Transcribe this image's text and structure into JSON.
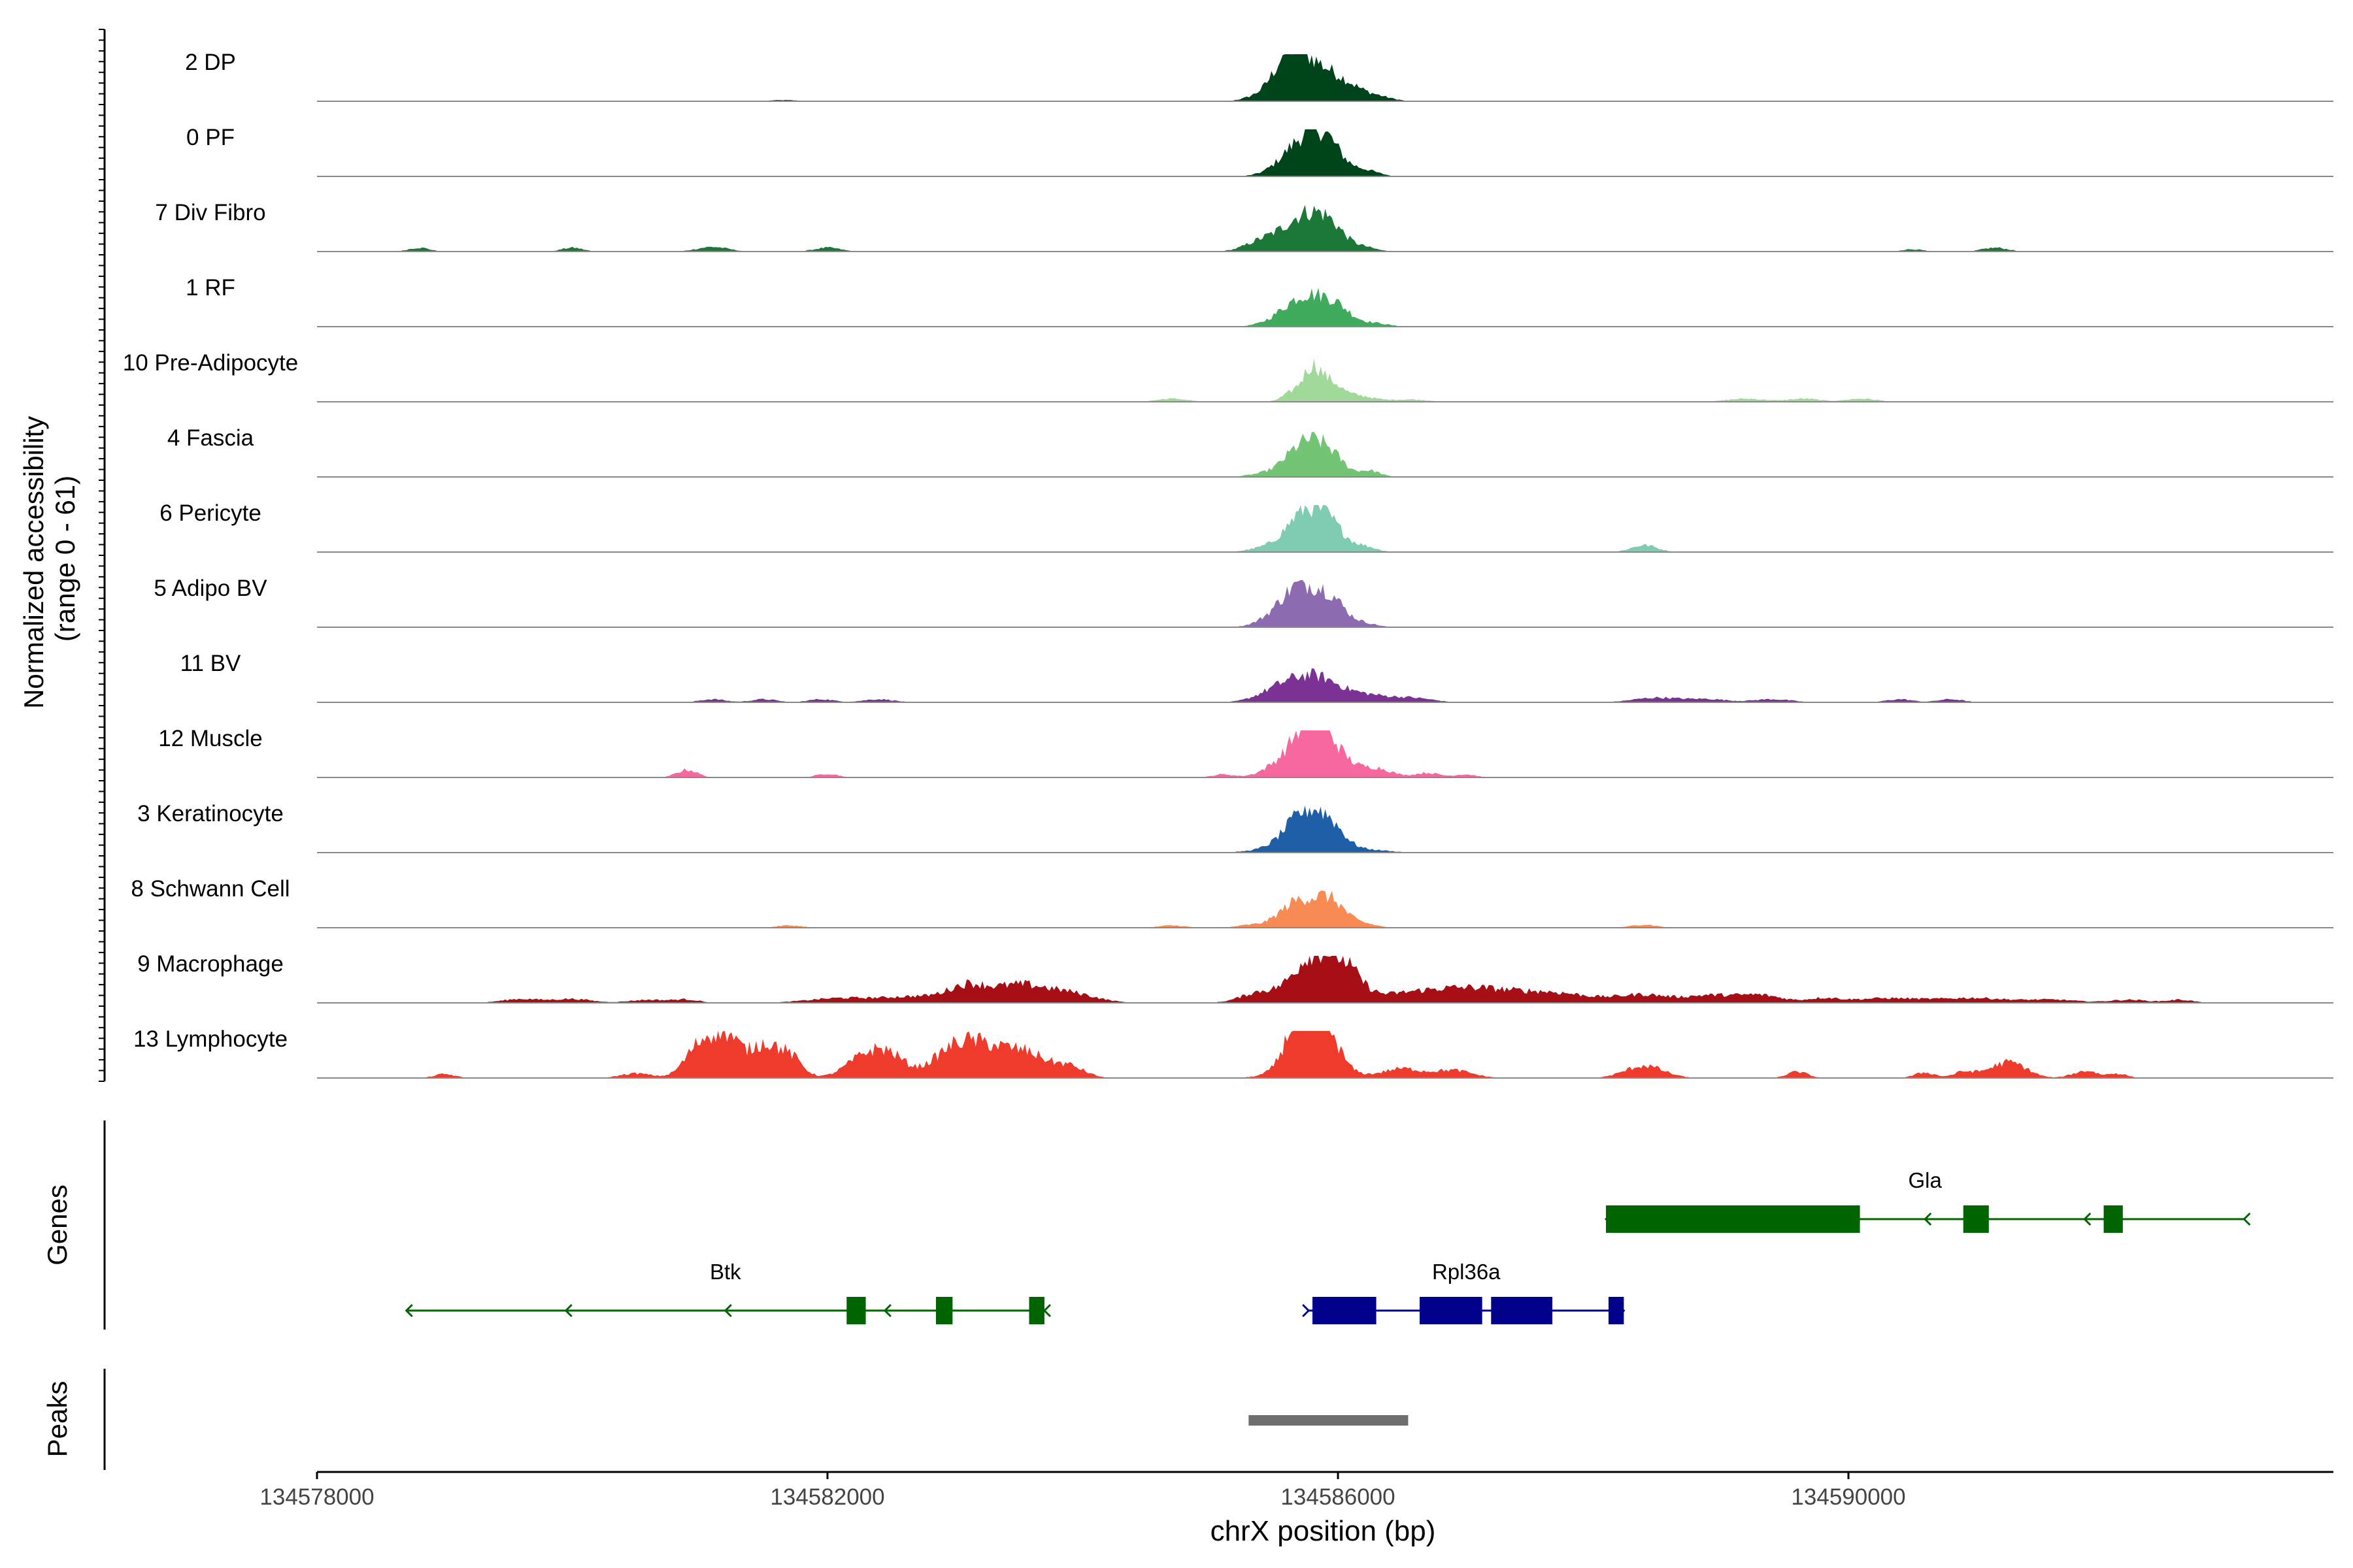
{
  "chart_data": {
    "type": "area",
    "title": "",
    "ylabel_line1": "Normalized accessibility",
    "ylabel_line2": "(range 0 - 61)",
    "xlabel": "chrX position (bp)",
    "xlim": [
      134578000,
      134593800
    ],
    "ylim": [
      0,
      61
    ],
    "xticks": [
      134578000,
      134582000,
      134586000,
      134590000
    ],
    "panel_labels": {
      "genes": "Genes",
      "peaks": "Peaks"
    },
    "tracks": [
      {
        "name": "2 DP",
        "color": "#00441b",
        "bumps": [
          [
            134585750,
            170,
            52
          ],
          [
            134586050,
            130,
            18
          ],
          [
            134586300,
            120,
            6
          ],
          [
            134585400,
            120,
            6
          ],
          [
            134581650,
            120,
            1.5
          ],
          [
            134585600,
            100,
            30
          ]
        ]
      },
      {
        "name": "0 PF",
        "color": "#00441b",
        "bumps": [
          [
            134585750,
            170,
            49
          ],
          [
            134585920,
            110,
            24
          ],
          [
            134586200,
            110,
            8
          ],
          [
            134580800,
            200,
            1
          ],
          [
            134588500,
            200,
            1
          ]
        ]
      },
      {
        "name": "7 Div Fibro",
        "color": "#1b7837",
        "bumps": [
          [
            134585750,
            170,
            47
          ],
          [
            134585950,
            110,
            18
          ],
          [
            134585400,
            130,
            12
          ],
          [
            134578800,
            80,
            5
          ],
          [
            134580000,
            80,
            5
          ],
          [
            134581100,
            120,
            6
          ],
          [
            134582000,
            100,
            5
          ],
          [
            134586200,
            100,
            5
          ],
          [
            134590500,
            80,
            3
          ],
          [
            134591100,
            80,
            3
          ],
          [
            134591200,
            80,
            3
          ]
        ]
      },
      {
        "name": "1 RF",
        "color": "#41ab5d",
        "bumps": [
          [
            134585750,
            180,
            40
          ],
          [
            134586000,
            120,
            16
          ],
          [
            134586300,
            100,
            4
          ]
        ]
      },
      {
        "name": "10 Pre-Adipocyte",
        "color": "#a1d99b",
        "bumps": [
          [
            134585800,
            70,
            42
          ],
          [
            134585650,
            80,
            12
          ],
          [
            134585950,
            80,
            22
          ],
          [
            134586150,
            120,
            8
          ],
          [
            134586550,
            150,
            3
          ],
          [
            134584700,
            120,
            4
          ],
          [
            134589200,
            150,
            4
          ],
          [
            134589650,
            120,
            4
          ],
          [
            134590100,
            120,
            4
          ]
        ]
      },
      {
        "name": "4 Fascia",
        "color": "#74c476",
        "bumps": [
          [
            134585750,
            150,
            44
          ],
          [
            134585950,
            110,
            18
          ],
          [
            134586250,
            80,
            8
          ],
          [
            134585400,
            120,
            3
          ]
        ]
      },
      {
        "name": "6 Pericyte",
        "color": "#7fccb2",
        "bumps": [
          [
            134585750,
            150,
            53
          ],
          [
            134585950,
            110,
            22
          ],
          [
            134586200,
            100,
            7
          ],
          [
            134588400,
            100,
            9
          ],
          [
            134585400,
            120,
            4
          ]
        ]
      },
      {
        "name": "5 Adipo BV",
        "color": "#8c6bb1",
        "bumps": [
          [
            134585700,
            150,
            53
          ],
          [
            134585950,
            110,
            30
          ],
          [
            134586200,
            100,
            5
          ],
          [
            134585450,
            120,
            5
          ]
        ]
      },
      {
        "name": "11 BV",
        "color": "#7b3294",
        "bumps": [
          [
            134585800,
            200,
            34
          ],
          [
            134585500,
            150,
            10
          ],
          [
            134586250,
            180,
            8
          ],
          [
            134586600,
            150,
            5
          ],
          [
            134581100,
            100,
            4
          ],
          [
            134581500,
            100,
            4
          ],
          [
            134581950,
            100,
            4
          ],
          [
            134582400,
            120,
            4
          ],
          [
            134588500,
            180,
            6
          ],
          [
            134588900,
            150,
            4
          ],
          [
            134589400,
            150,
            4
          ],
          [
            134590400,
            100,
            4
          ],
          [
            134590800,
            100,
            4
          ]
        ]
      },
      {
        "name": "12 Muscle",
        "color": "#f768a1",
        "bumps": [
          [
            134585800,
            120,
            68
          ],
          [
            134585600,
            150,
            22
          ],
          [
            134586000,
            120,
            24
          ],
          [
            134586300,
            120,
            12
          ],
          [
            134586700,
            100,
            6
          ],
          [
            134587000,
            80,
            4
          ],
          [
            134585100,
            80,
            4
          ],
          [
            134580900,
            80,
            10
          ],
          [
            134582000,
            80,
            5
          ]
        ]
      },
      {
        "name": "3 Keratinocyte",
        "color": "#1f5fa8",
        "bumps": [
          [
            134585750,
            150,
            50
          ],
          [
            134585950,
            110,
            22
          ],
          [
            134585500,
            180,
            4
          ],
          [
            134586200,
            180,
            4
          ]
        ]
      },
      {
        "name": "8 Schwann Cell",
        "color": "#f88b54",
        "bumps": [
          [
            134585700,
            150,
            35
          ],
          [
            134585950,
            110,
            30
          ],
          [
            134586200,
            100,
            5
          ],
          [
            134585300,
            100,
            3
          ],
          [
            134584700,
            100,
            3
          ],
          [
            134588400,
            100,
            4
          ],
          [
            134581700,
            100,
            3
          ]
        ]
      },
      {
        "name": "9 Macrophage",
        "color": "#a50f15",
        "bumps": [
          [
            134585800,
            150,
            58
          ],
          [
            134586050,
            130,
            38
          ],
          [
            134585400,
            150,
            14
          ],
          [
            134586600,
            350,
            12
          ],
          [
            134587100,
            300,
            14
          ],
          [
            134587700,
            300,
            12
          ],
          [
            134588400,
            200,
            10
          ],
          [
            134588900,
            180,
            9
          ],
          [
            134589300,
            180,
            10
          ],
          [
            134589800,
            120,
            5
          ],
          [
            134590300,
            300,
            6
          ],
          [
            134591000,
            250,
            6
          ],
          [
            134591600,
            200,
            4
          ],
          [
            134583100,
            150,
            20
          ],
          [
            134583500,
            200,
            22
          ],
          [
            134583900,
            200,
            12
          ],
          [
            134582100,
            250,
            6
          ],
          [
            134582700,
            250,
            8
          ],
          [
            134579600,
            150,
            5
          ],
          [
            134580000,
            150,
            5
          ],
          [
            134580600,
            150,
            4
          ],
          [
            134580900,
            100,
            4
          ],
          [
            134592200,
            150,
            4
          ],
          [
            134592600,
            100,
            4
          ]
        ]
      },
      {
        "name": "13 Lymphocyte",
        "color": "#ef3b2c",
        "bumps": [
          [
            134585700,
            100,
            58
          ],
          [
            134585900,
            100,
            40
          ],
          [
            134585800,
            200,
            30
          ],
          [
            134581200,
            120,
            56
          ],
          [
            134581000,
            100,
            30
          ],
          [
            134581500,
            100,
            40
          ],
          [
            134581700,
            100,
            28
          ],
          [
            134582300,
            150,
            28
          ],
          [
            134582500,
            120,
            22
          ],
          [
            134583000,
            180,
            35
          ],
          [
            134583300,
            200,
            32
          ],
          [
            134583600,
            150,
            22
          ],
          [
            134583900,
            120,
            14
          ],
          [
            134580500,
            120,
            6
          ],
          [
            134579000,
            80,
            5
          ],
          [
            134580900,
            100,
            8
          ],
          [
            134586500,
            150,
            12
          ],
          [
            134586900,
            150,
            10
          ],
          [
            134588400,
            150,
            16
          ],
          [
            134591200,
            150,
            12
          ],
          [
            134591300,
            120,
            10
          ],
          [
            134590600,
            80,
            7
          ],
          [
            134590900,
            80,
            7
          ],
          [
            134589600,
            80,
            8
          ],
          [
            134591800,
            80,
            6
          ],
          [
            134592100,
            80,
            6
          ],
          [
            134591900,
            60,
            6
          ]
        ]
      }
    ],
    "genes": [
      {
        "name": "Btk",
        "color": "#006400",
        "strand": "-",
        "start": 134578700,
        "end": 134583700,
        "row": 2,
        "exons": [
          [
            134582150,
            134582300
          ],
          [
            134582850,
            134582980
          ],
          [
            134583580,
            134583700
          ]
        ]
      },
      {
        "name": "Rpl36a",
        "color": "#00008b",
        "strand": "+",
        "start": 134585770,
        "end": 134588240,
        "row": 2,
        "exons": [
          [
            134585800,
            134586300
          ],
          [
            134586640,
            134587130
          ],
          [
            134587200,
            134587680
          ],
          [
            134588120,
            134588240
          ]
        ]
      },
      {
        "name": "Gla",
        "color": "#006400",
        "strand": "-",
        "start": 134588100,
        "end": 134593100,
        "row": 1,
        "exons": [
          [
            134588100,
            134590090
          ],
          [
            134590900,
            134591100
          ],
          [
            134592000,
            134592150
          ]
        ]
      }
    ],
    "peaks": [
      [
        134585300,
        134586550
      ]
    ]
  }
}
